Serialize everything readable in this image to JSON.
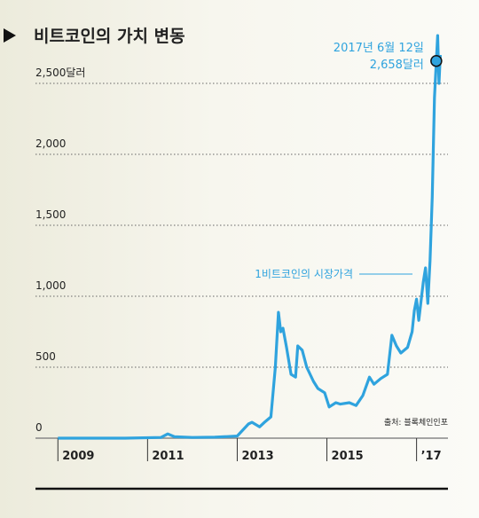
{
  "chart_data": {
    "type": "line",
    "title": "비트코인의 가치 변동",
    "x": [
      2009.0,
      2010.5,
      2011.3,
      2011.45,
      2011.6,
      2012.0,
      2012.5,
      2013.0,
      2013.25,
      2013.33,
      2013.5,
      2013.6,
      2013.75,
      2013.85,
      2013.92,
      2013.97,
      2014.02,
      2014.1,
      2014.2,
      2014.3,
      2014.35,
      2014.45,
      2014.55,
      2014.7,
      2014.8,
      2014.95,
      2015.05,
      2015.2,
      2015.3,
      2015.5,
      2015.65,
      2015.8,
      2015.95,
      2016.05,
      2016.2,
      2016.35,
      2016.45,
      2016.55,
      2016.65,
      2016.8,
      2016.9,
      2016.95,
      2017.0,
      2017.05,
      2017.15,
      2017.2,
      2017.25,
      2017.3,
      2017.35,
      2017.4,
      2017.44,
      2017.47,
      2017.5,
      2017.53
    ],
    "series": [
      {
        "name": "1비트코인의 시장가격",
        "color": "#2fa3de",
        "values": [
          0,
          0,
          5,
          30,
          10,
          5,
          7,
          15,
          100,
          112,
          80,
          110,
          150,
          500,
          887,
          750,
          775,
          640,
          450,
          430,
          650,
          620,
          500,
          400,
          350,
          320,
          220,
          250,
          240,
          250,
          230,
          300,
          430,
          380,
          420,
          450,
          725,
          650,
          600,
          640,
          750,
          900,
          980,
          830,
          1100,
          1200,
          950,
          1250,
          1700,
          2400,
          2658,
          2837,
          2500,
          2700
        ]
      }
    ],
    "xlim": [
      2008.5,
      2017.7
    ],
    "ylim": [
      0,
      2900
    ],
    "xticks": [
      2009,
      2011,
      2013,
      2015,
      {
        "value": 2017,
        "label": "’17"
      }
    ],
    "yticks": [
      0,
      500,
      {
        "value": 1000,
        "label": "1,000"
      },
      {
        "value": 1500,
        "label": "1,500"
      },
      {
        "value": 2000,
        "label": "2,000"
      },
      {
        "value": 2500,
        "label": "2,500달러"
      }
    ],
    "grid": true,
    "highlight": {
      "x": 2017.44,
      "y": 2658,
      "lines": [
        "2017년 6월 12일",
        "2,658달러"
      ]
    },
    "source": "출처: 블록체인인포"
  }
}
